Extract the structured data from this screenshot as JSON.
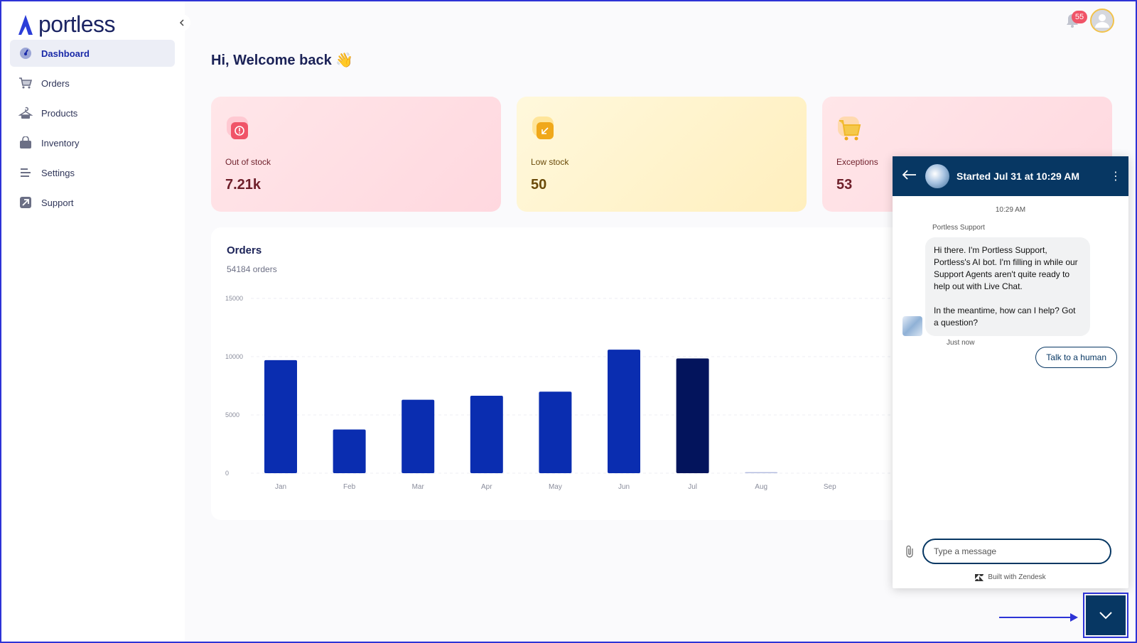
{
  "brand": {
    "name": "portless"
  },
  "sidebar": {
    "items": [
      {
        "label": "Dashboard",
        "icon": "gauge-icon",
        "active": true
      },
      {
        "label": "Orders",
        "icon": "cart-icon"
      },
      {
        "label": "Products",
        "icon": "hanger-icon"
      },
      {
        "label": "Inventory",
        "icon": "bag-icon"
      },
      {
        "label": "Settings",
        "icon": "sliders-icon"
      },
      {
        "label": "Support",
        "icon": "arrow-up-right-icon"
      }
    ]
  },
  "header": {
    "greeting": "Hi, Welcome back 👋",
    "notification_count": "55"
  },
  "cards": [
    {
      "label": "Out of stock",
      "value": "7.21k",
      "icon": "alert-icon",
      "color": "#f05468"
    },
    {
      "label": "Low stock",
      "value": "50",
      "icon": "arrow-down-left-icon",
      "color": "#f0a81a"
    },
    {
      "label": "Exceptions",
      "value": "53",
      "icon": "cart-icon",
      "color": "#f0b82a"
    }
  ],
  "orders": {
    "title": "Orders",
    "subtitle": "54184 orders"
  },
  "chart_data": {
    "type": "bar",
    "categories": [
      "Jan",
      "Feb",
      "Mar",
      "Apr",
      "May",
      "Jun",
      "Jul",
      "Aug",
      "Sep"
    ],
    "values": [
      9700,
      3750,
      6300,
      6650,
      7000,
      10600,
      9850,
      60,
      0
    ],
    "highlight_index": 6,
    "yticks": [
      0,
      5000,
      10000,
      15000
    ],
    "ylim": [
      0,
      15000
    ],
    "colors": {
      "bar": "#0a2db0",
      "highlight": "#03145c",
      "muted": "#b5bde0"
    },
    "grid": true
  },
  "chat": {
    "header_title": "Started Jul 31 at 10:29 AM",
    "timestamp": "10:29 AM",
    "sender": "Portless Support",
    "message": "Hi there. I'm Portless Support, Portless's AI bot.  I'm filling in while our Support Agents aren't quite ready to help out with Live Chat.\n\nIn the meantime, how can I help? Got a question?",
    "message_time": "Just now",
    "quick_reply": "Talk to a human",
    "input_placeholder": "Type a message",
    "powered_by": "Built with Zendesk",
    "accent": "#073763"
  }
}
